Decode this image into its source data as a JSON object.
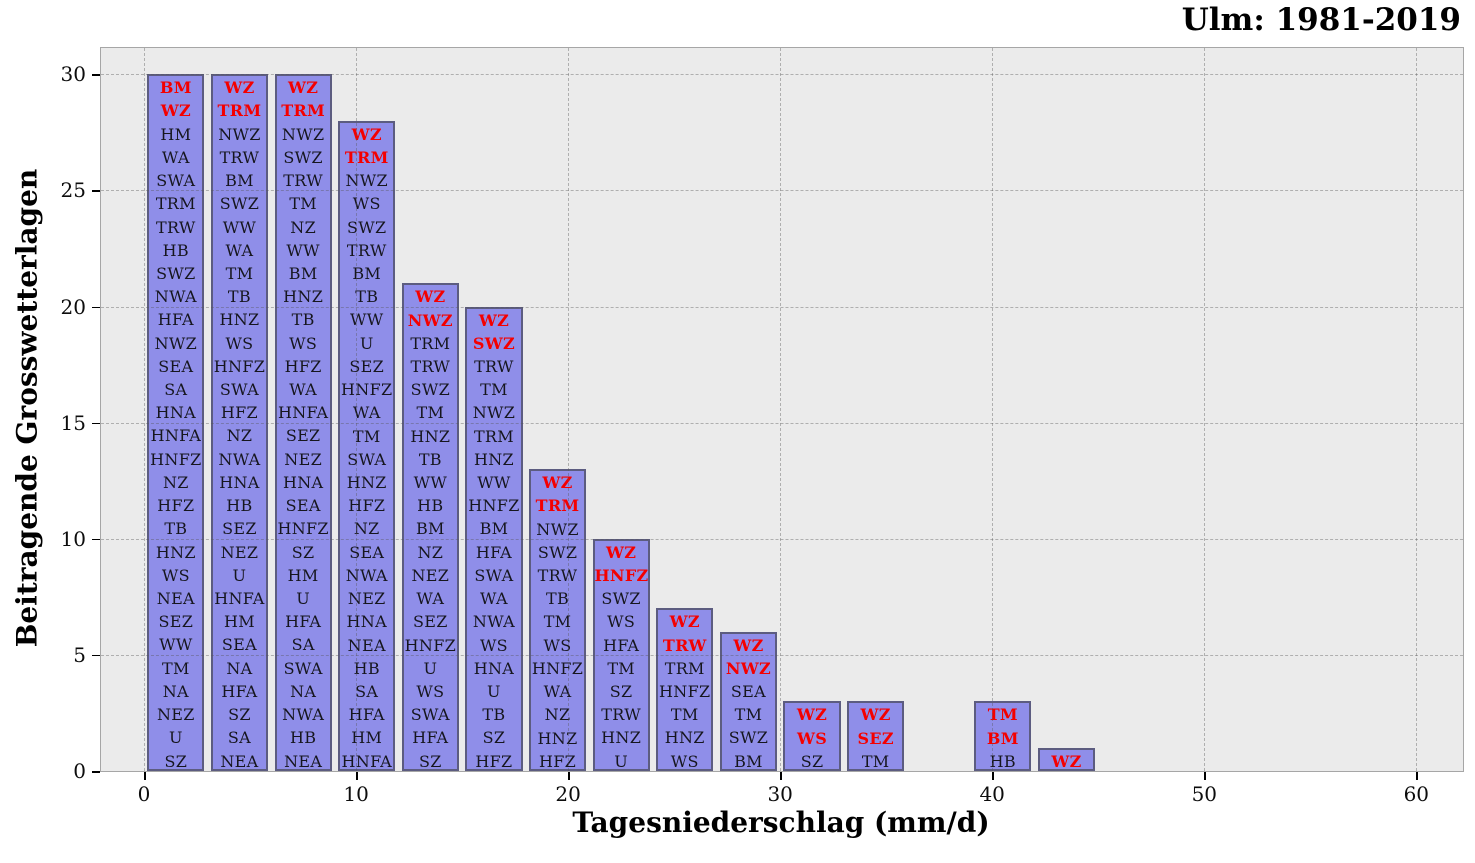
{
  "chart_data": {
    "type": "bar",
    "title": "Ulm: 1981-2019",
    "xlabel": "Tagesniederschlag (mm/d)",
    "ylabel": "Beitragende Grosswetterlagen",
    "xlim": [
      -2.03,
      62.2
    ],
    "ylim": [
      0,
      31.13
    ],
    "xticks": [
      0,
      10,
      20,
      30,
      40,
      50,
      60
    ],
    "yticks": [
      0,
      5,
      10,
      15,
      20,
      25,
      30
    ],
    "grid": "dashed",
    "legend": "none",
    "bar_width": 2.7,
    "bin_width": 3,
    "colors": {
      "bar_fill": "#8f8ee9",
      "bar_border": "#5c5c80",
      "highlight_text": "#f40000",
      "label_text": "#16161e",
      "plot_bg": "#ebebeb",
      "outer_bg": "#ffffff",
      "axis_text": "#0d0d0d"
    },
    "bars": [
      {
        "center": 1.5,
        "height": 30,
        "red_count": 2,
        "labels": [
          "BM",
          "WZ",
          "HM",
          "WA",
          "SWA",
          "TRM",
          "TRW",
          "HB",
          "SWZ",
          "NWA",
          "HFA",
          "NWZ",
          "SEA",
          "SA",
          "HNA",
          "HNFA",
          "HNFZ",
          "NZ",
          "HFZ",
          "TB",
          "HNZ",
          "WS",
          "NEA",
          "SEZ",
          "WW",
          "TM",
          "NA",
          "NEZ",
          "U",
          "SZ"
        ]
      },
      {
        "center": 4.5,
        "height": 30,
        "red_count": 2,
        "labels": [
          "WZ",
          "TRM",
          "NWZ",
          "TRW",
          "BM",
          "SWZ",
          "WW",
          "WA",
          "TM",
          "TB",
          "HNZ",
          "WS",
          "HNFZ",
          "SWA",
          "HFZ",
          "NZ",
          "NWA",
          "HNA",
          "HB",
          "SEZ",
          "NEZ",
          "U",
          "HNFA",
          "HM",
          "SEA",
          "NA",
          "HFA",
          "SZ",
          "SA",
          "NEA"
        ]
      },
      {
        "center": 7.5,
        "height": 30,
        "red_count": 2,
        "labels": [
          "WZ",
          "TRM",
          "NWZ",
          "SWZ",
          "TRW",
          "TM",
          "NZ",
          "WW",
          "BM",
          "HNZ",
          "TB",
          "WS",
          "HFZ",
          "WA",
          "HNFA",
          "SEZ",
          "NEZ",
          "HNA",
          "SEA",
          "HNFZ",
          "SZ",
          "HM",
          "U",
          "HFA",
          "SA",
          "SWA",
          "NA",
          "NWA",
          "HB",
          "NEA"
        ]
      },
      {
        "center": 10.5,
        "height": 28,
        "red_count": 2,
        "labels": [
          "WZ",
          "TRM",
          "NWZ",
          "WS",
          "SWZ",
          "TRW",
          "BM",
          "TB",
          "WW",
          "U",
          "SEZ",
          "HNFZ",
          "WA",
          "TM",
          "SWA",
          "HNZ",
          "HFZ",
          "NZ",
          "SEA",
          "NWA",
          "NEZ",
          "HNA",
          "NEA",
          "HB",
          "SA",
          "HFA",
          "HM",
          "HNFA"
        ]
      },
      {
        "center": 13.5,
        "height": 21,
        "red_count": 2,
        "labels": [
          "WZ",
          "NWZ",
          "TRM",
          "TRW",
          "SWZ",
          "TM",
          "HNZ",
          "TB",
          "WW",
          "HB",
          "BM",
          "NZ",
          "NEZ",
          "WA",
          "SEZ",
          "HNFZ",
          "U",
          "WS",
          "SWA",
          "HFA",
          "SZ"
        ]
      },
      {
        "center": 16.5,
        "height": 20,
        "red_count": 2,
        "labels": [
          "WZ",
          "SWZ",
          "TRW",
          "TM",
          "NWZ",
          "TRM",
          "HNZ",
          "WW",
          "HNFZ",
          "BM",
          "HFA",
          "SWA",
          "WA",
          "NWA",
          "WS",
          "HNA",
          "U",
          "TB",
          "SZ",
          "HFZ"
        ]
      },
      {
        "center": 19.5,
        "height": 13,
        "red_count": 2,
        "labels": [
          "WZ",
          "TRM",
          "NWZ",
          "SWZ",
          "TRW",
          "TB",
          "TM",
          "WS",
          "HNFZ",
          "WA",
          "NZ",
          "HNZ",
          "HFZ"
        ]
      },
      {
        "center": 22.5,
        "height": 10,
        "red_count": 2,
        "labels": [
          "WZ",
          "HNFZ",
          "SWZ",
          "WS",
          "HFA",
          "TM",
          "SZ",
          "TRW",
          "HNZ",
          "U"
        ]
      },
      {
        "center": 25.5,
        "height": 7,
        "red_count": 2,
        "labels": [
          "WZ",
          "TRW",
          "TRM",
          "HNFZ",
          "TM",
          "HNZ",
          "WS"
        ]
      },
      {
        "center": 28.5,
        "height": 6,
        "red_count": 2,
        "labels": [
          "WZ",
          "NWZ",
          "SEA",
          "TM",
          "SWZ",
          "BM"
        ]
      },
      {
        "center": 31.5,
        "height": 3,
        "red_count": 2,
        "labels": [
          "WZ",
          "WS",
          "SZ"
        ]
      },
      {
        "center": 34.5,
        "height": 3,
        "red_count": 2,
        "labels": [
          "WZ",
          "SEZ",
          "TM"
        ]
      },
      {
        "center": 40.5,
        "height": 3,
        "red_count": 2,
        "labels": [
          "TM",
          "BM",
          "HB"
        ]
      },
      {
        "center": 43.5,
        "height": 1,
        "red_count": 1,
        "labels": [
          "WZ"
        ]
      }
    ]
  }
}
